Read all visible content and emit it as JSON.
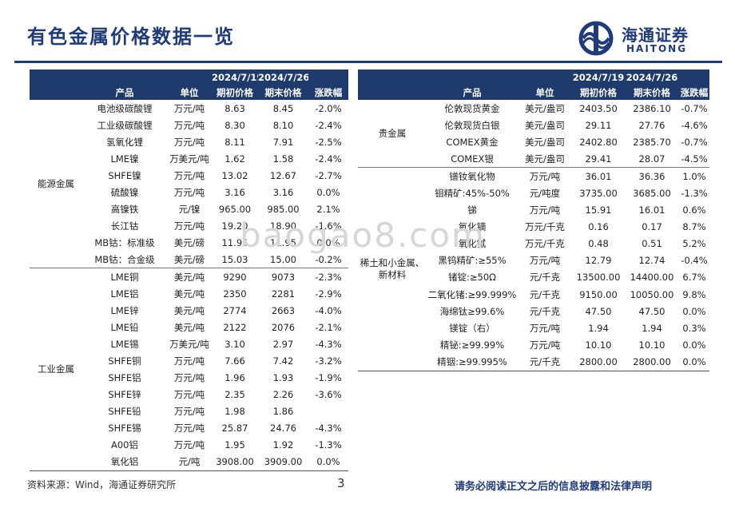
{
  "title": "有色金属价格数据一览",
  "logo": {
    "cn": "海通证券",
    "en": "HAITONG"
  },
  "watermark": "baogao8.com",
  "header_dates": {
    "start": "2024/7/19",
    "end": "2024/7/26"
  },
  "columns": {
    "product": "产品",
    "unit": "单位",
    "start": "期初价格",
    "end": "期末价格",
    "change": "涨跌幅"
  },
  "left_groups": [
    {
      "category": "能源金属",
      "rows": [
        {
          "product": "电池级碳酸锂",
          "unit": "万元/吨",
          "start": "8.63",
          "end": "8.45",
          "change": "-2.0%"
        },
        {
          "product": "工业级碳酸锂",
          "unit": "万元/吨",
          "start": "8.30",
          "end": "8.10",
          "change": "-2.4%"
        },
        {
          "product": "氢氧化锂",
          "unit": "万元/吨",
          "start": "8.11",
          "end": "7.91",
          "change": "-2.5%"
        },
        {
          "product": "LME镍",
          "unit": "万美元/吨",
          "start": "1.62",
          "end": "1.58",
          "change": "-2.4%"
        },
        {
          "product": "SHFE镍",
          "unit": "万元/吨",
          "start": "13.02",
          "end": "12.67",
          "change": "-2.7%"
        },
        {
          "product": "硫酸镍",
          "unit": "万元/吨",
          "start": "3.16",
          "end": "3.16",
          "change": "0.0%"
        },
        {
          "product": "高镍铁",
          "unit": "元/镍",
          "start": "965.00",
          "end": "985.00",
          "change": "2.1%"
        },
        {
          "product": "长江钴",
          "unit": "万元/吨",
          "start": "19.20",
          "end": "18.90",
          "change": "-1.6%"
        },
        {
          "product": "MB钴：标准级",
          "unit": "美元/磅",
          "start": "11.95",
          "end": "11.95",
          "change": "0.0%"
        },
        {
          "product": "MB钴：合金级",
          "unit": "美元/磅",
          "start": "15.03",
          "end": "15.00",
          "change": "-0.2%"
        }
      ]
    },
    {
      "category": "工业金属",
      "rows": [
        {
          "product": "LME铜",
          "unit": "美元/吨",
          "start": "9290",
          "end": "9073",
          "change": "-2.3%"
        },
        {
          "product": "LME铝",
          "unit": "美元/吨",
          "start": "2350",
          "end": "2281",
          "change": "-2.9%"
        },
        {
          "product": "LME锌",
          "unit": "美元/吨",
          "start": "2774",
          "end": "2663",
          "change": "-4.0%"
        },
        {
          "product": "LME铅",
          "unit": "美元/吨",
          "start": "2122",
          "end": "2076",
          "change": "-2.1%"
        },
        {
          "product": "LME锡",
          "unit": "万美元/吨",
          "start": "3.10",
          "end": "2.97",
          "change": "-4.3%"
        },
        {
          "product": "SHFE铜",
          "unit": "万元/吨",
          "start": "7.66",
          "end": "7.42",
          "change": "-3.2%"
        },
        {
          "product": "SHFE铝",
          "unit": "万元/吨",
          "start": "1.96",
          "end": "1.93",
          "change": "-1.9%"
        },
        {
          "product": "SHFE锌",
          "unit": "万元/吨",
          "start": "2.35",
          "end": "2.26",
          "change": "-3.6%"
        },
        {
          "product": "SHFE铅",
          "unit": "万元/吨",
          "start": "1.98",
          "end": "1.86",
          "change": ""
        },
        {
          "product": "SHFE锡",
          "unit": "万元/吨",
          "start": "25.87",
          "end": "24.76",
          "change": "-4.3%"
        },
        {
          "product": "A00铝",
          "unit": "万元/吨",
          "start": "1.95",
          "end": "1.92",
          "change": "-1.3%"
        },
        {
          "product": "氧化铝",
          "unit": "元/吨",
          "start": "3908.00",
          "end": "3909.00",
          "change": "0.0%"
        }
      ]
    }
  ],
  "right_groups": [
    {
      "category": "贵金属",
      "rows": [
        {
          "product": "伦敦现货黄金",
          "unit": "美元/盎司",
          "start": "2403.50",
          "end": "2386.10",
          "change": "-0.7%"
        },
        {
          "product": "伦敦现货白银",
          "unit": "美元/盎司",
          "start": "29.11",
          "end": "27.76",
          "change": "-4.6%"
        },
        {
          "product": "COMEX黄金",
          "unit": "美元/盎司",
          "start": "2402.80",
          "end": "2385.70",
          "change": "-0.7%"
        },
        {
          "product": "COMEX银",
          "unit": "美元/盎司",
          "start": "29.41",
          "end": "28.07",
          "change": "-4.5%"
        }
      ]
    },
    {
      "category": "稀土和小金属、新材料",
      "rows": [
        {
          "product": "镨钕氧化物",
          "unit": "万元/吨",
          "start": "36.01",
          "end": "36.36",
          "change": "1.0%"
        },
        {
          "product": "钼精矿:45%-50%",
          "unit": "元/吨度",
          "start": "3735.00",
          "end": "3685.00",
          "change": "-1.3%"
        },
        {
          "product": "锑",
          "unit": "万元/吨",
          "start": "15.91",
          "end": "16.01",
          "change": "0.6%"
        },
        {
          "product": "氧化镝",
          "unit": "万元/千克",
          "start": "0.16",
          "end": "0.17",
          "change": "8.7%"
        },
        {
          "product": "氧化铽",
          "unit": "万元/千克",
          "start": "0.48",
          "end": "0.51",
          "change": "5.2%"
        },
        {
          "product": "黑钨精矿:≥55%",
          "unit": "万元/吨",
          "start": "12.79",
          "end": "12.74",
          "change": "-0.4%"
        },
        {
          "product": "锗锭:≥50Ω",
          "unit": "元/千克",
          "start": "13500.00",
          "end": "14400.00",
          "change": "6.7%"
        },
        {
          "product": "二氧化锗:≥99.999%",
          "unit": "元/千克",
          "start": "9150.00",
          "end": "10050.00",
          "change": "9.8%"
        },
        {
          "product": "海绵钛≥99.6%",
          "unit": "元/千克",
          "start": "47.50",
          "end": "47.50",
          "change": "0.0%"
        },
        {
          "product": "镁锭（右）",
          "unit": "万元/吨",
          "start": "1.94",
          "end": "1.94",
          "change": "0.3%"
        },
        {
          "product": "精铋:≥99.99%",
          "unit": "万元/吨",
          "start": "10.10",
          "end": "10.10",
          "change": "0.0%"
        },
        {
          "product": "精铟:≥99.995%",
          "unit": "元/千克",
          "start": "2800.00",
          "end": "2800.00",
          "change": "0.0%"
        }
      ]
    }
  ],
  "footer": {
    "source": "资料来源：Wind，海通证券研究所",
    "page": "3",
    "disclaimer": "请务必阅读正文之后的信息披露和法律声明"
  },
  "colors": {
    "brand": "#1f3b7a",
    "header_bg": "#1f3b6e"
  }
}
